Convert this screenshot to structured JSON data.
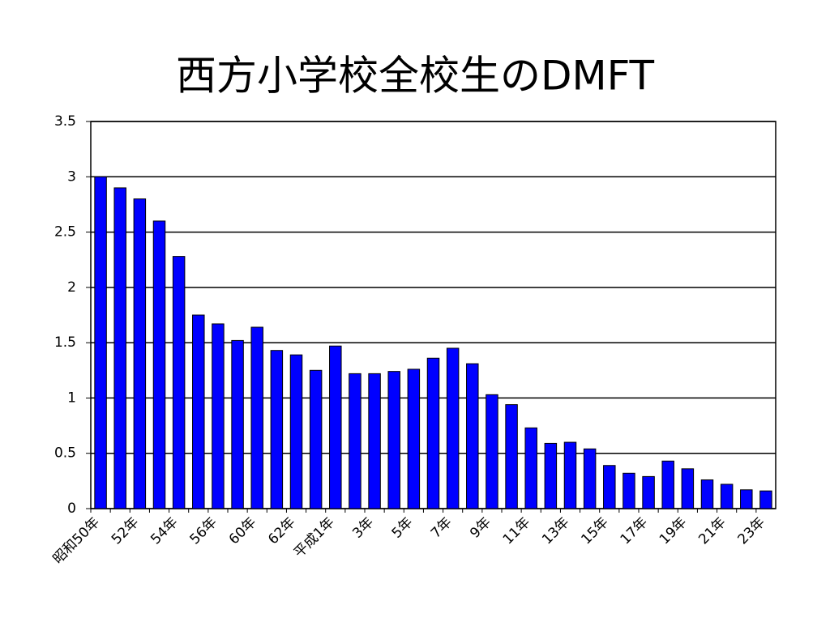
{
  "chart_data": {
    "type": "bar",
    "title": "西方小学校全校生のDMFT",
    "categories": [
      "昭和50年",
      null,
      "52年",
      null,
      "54年",
      null,
      "56年",
      null,
      "60年",
      null,
      "62年",
      null,
      "平成1年",
      null,
      "3年",
      null,
      "5年",
      null,
      "7年",
      null,
      "9年",
      null,
      "11年",
      null,
      "13年",
      null,
      "15年",
      null,
      "17年",
      null,
      "19年",
      null,
      "21年",
      null,
      "23年"
    ],
    "values": [
      3.0,
      2.9,
      2.8,
      2.6,
      2.28,
      1.75,
      1.67,
      1.52,
      1.64,
      1.43,
      1.39,
      1.25,
      1.47,
      1.22,
      1.22,
      1.24,
      1.26,
      1.36,
      1.45,
      1.31,
      1.03,
      0.94,
      0.73,
      0.59,
      0.6,
      0.54,
      0.39,
      0.32,
      0.29,
      0.43,
      0.36,
      0.26,
      0.22,
      0.17,
      0.16
    ],
    "color": "#0000ff",
    "ylim": [
      0,
      3.5
    ],
    "yticks": [
      0,
      0.5,
      1,
      1.5,
      2,
      2.5,
      3,
      3.5
    ],
    "grid": true
  }
}
